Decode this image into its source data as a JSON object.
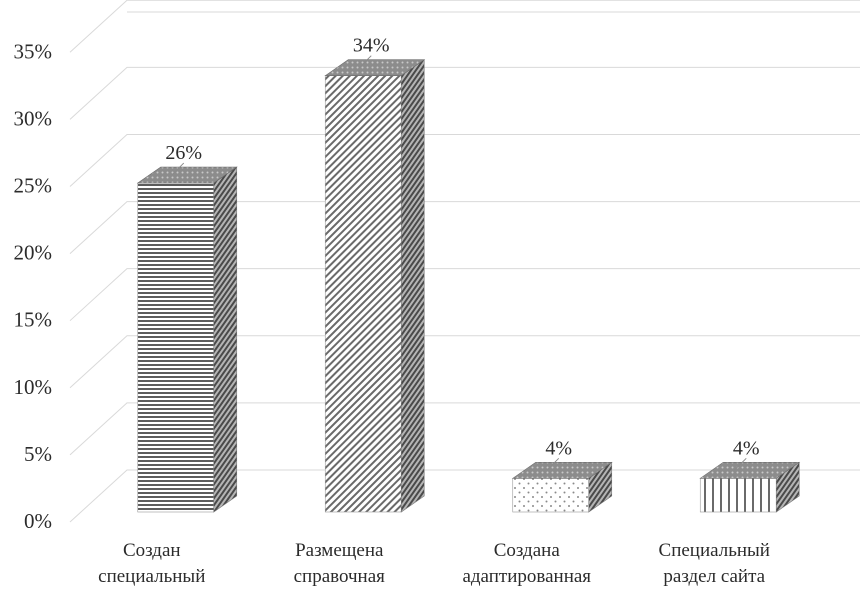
{
  "chart_data": {
    "type": "bar",
    "style": "3d-column",
    "categories": [
      [
        "Создан",
        "специальный"
      ],
      [
        "Размещена",
        "справочная"
      ],
      [
        "Создана",
        "адаптированная"
      ],
      [
        "Специальный",
        "раздел сайта"
      ]
    ],
    "values": [
      26,
      34,
      4,
      4
    ],
    "data_labels": [
      "26%",
      "34%",
      "4%",
      "4%"
    ],
    "y_ticks": [
      "0%",
      "5%",
      "10%",
      "15%",
      "20%",
      "25%",
      "30%",
      "35%"
    ],
    "ylim": [
      0,
      38
    ],
    "grid": true,
    "legend": "none",
    "title": "",
    "xlabel": "",
    "ylabel": "",
    "patterns": [
      "horizontal-stripes",
      "diagonal-hatch",
      "dots",
      "vertical-stripes"
    ],
    "colors": {
      "grid": "#d9d9d9",
      "text": "#2b2b2b",
      "bar": "#6e6e6e"
    }
  }
}
